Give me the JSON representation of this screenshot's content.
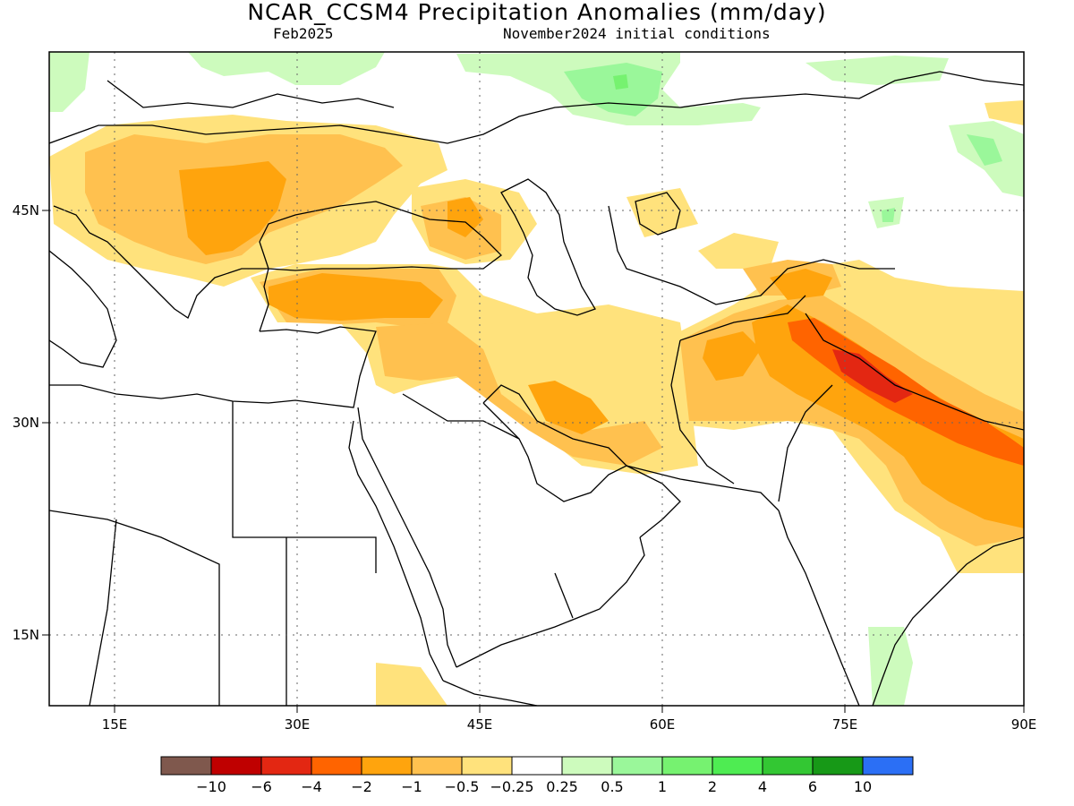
{
  "title": "NCAR_CCSM4 Precipitation Anomalies (mm/day)",
  "forecast_month": "Feb2025",
  "init_conditions": "November2024 initial conditions",
  "x_ticks": [
    {
      "label": "15E",
      "lon": 15
    },
    {
      "label": "30E",
      "lon": 30
    },
    {
      "label": "45E",
      "lon": 45
    },
    {
      "label": "60E",
      "lon": 60
    },
    {
      "label": "75E",
      "lon": 75
    },
    {
      "label": "90E",
      "lon": 90
    }
  ],
  "y_ticks": [
    {
      "label": "45N",
      "lat": 45
    },
    {
      "label": "30N",
      "lat": 30
    },
    {
      "label": "15N",
      "lat": 15
    }
  ],
  "colorbar": {
    "colors": [
      "#7f584d",
      "#bf0000",
      "#e32712",
      "#ff6400",
      "#ffa40d",
      "#ffc14f",
      "#ffe27c",
      "#ffffff",
      "#cdfbbd",
      "#9af79a",
      "#76f270",
      "#4eec52",
      "#33c733",
      "#179917",
      "#2b6ff5"
    ],
    "labels": [
      "−10",
      "−6",
      "−4",
      "−2",
      "−1",
      "−0.5",
      "−0.25",
      "0.25",
      "0.5",
      "1",
      "2",
      "4",
      "6",
      "10"
    ]
  }
}
